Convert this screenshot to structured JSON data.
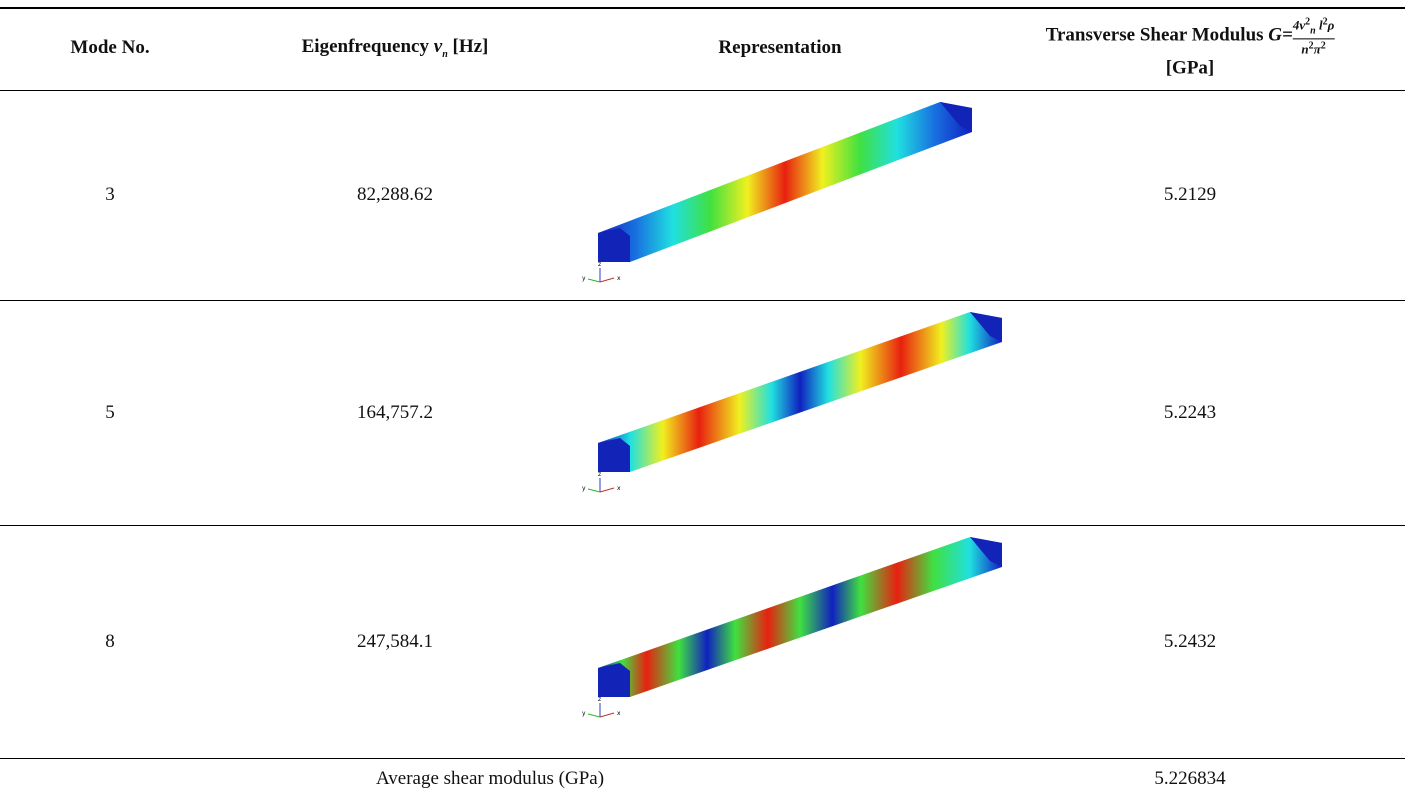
{
  "header": {
    "mode": "Mode No.",
    "frequency": {
      "text": "Eigenfrequency",
      "symbol": "ν",
      "sub": "n",
      "unit": "[Hz]"
    },
    "representation": "Representation",
    "shear": {
      "text": "Transverse Shear Modulus",
      "lhs": "G=",
      "numerator": {
        "coef": "4ν",
        "sup1": "2",
        "sub1": "n",
        "l": "l",
        "sup2": "2",
        "rho": "ρ"
      },
      "denominator": {
        "n": "n",
        "sup1": "2",
        "pi": "π",
        "sup2": "2"
      },
      "unit": "[GPa]"
    }
  },
  "rows": [
    {
      "mode": "3",
      "frequency": "82,288.62",
      "shear": "5.2129",
      "triad": [
        "z",
        "y",
        "x"
      ]
    },
    {
      "mode": "5",
      "frequency": "164,757.2",
      "shear": "5.2243",
      "triad": [
        "z",
        "y",
        "x"
      ]
    },
    {
      "mode": "8",
      "frequency": "247,584.1",
      "shear": "5.2432",
      "triad": [
        "z",
        "y",
        "x"
      ]
    }
  ],
  "footer": {
    "label": "Average shear modulus (GPa)",
    "value": "5.226834"
  }
}
